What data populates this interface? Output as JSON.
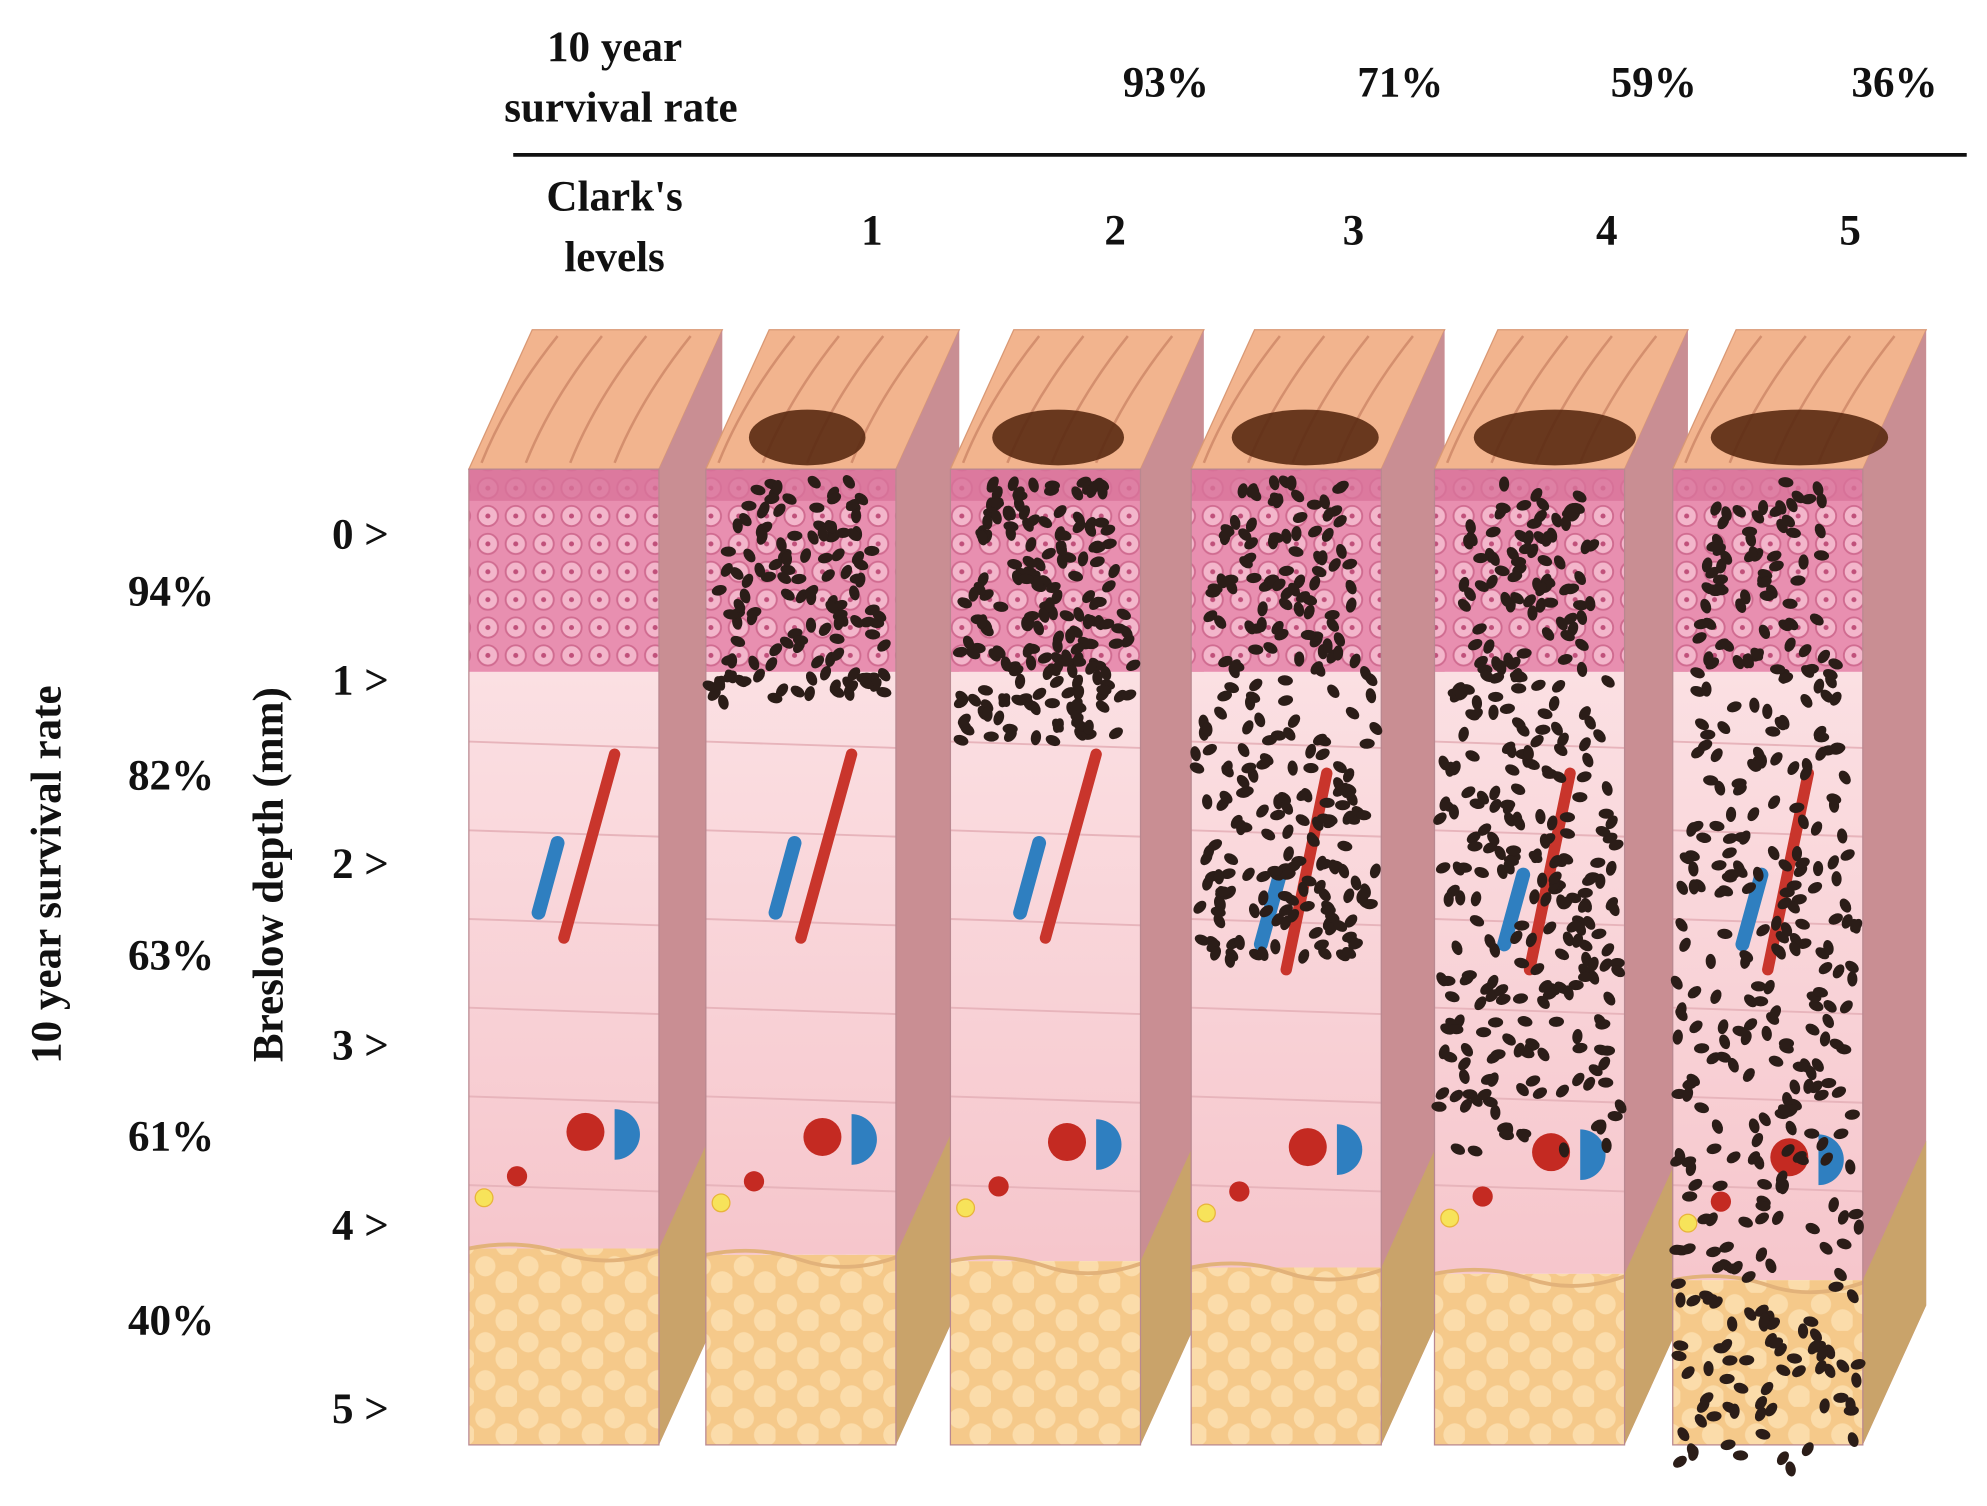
{
  "top_survival": {
    "label_lines": [
      "10 year",
      "survival rate"
    ],
    "rates": [
      "93%",
      "71%",
      "59%",
      "36%"
    ]
  },
  "clark": {
    "label_lines": [
      "Clark's",
      "levels"
    ],
    "levels": [
      "1",
      "2",
      "3",
      "4",
      "5"
    ]
  },
  "left_axis_title": "10 year  survival rate",
  "depth_axis_title": "Breslow depth (mm)",
  "depth_marks": [
    "0 >",
    "1 >",
    "2 >",
    "3 >",
    "4 >",
    "5 >"
  ],
  "left_rates": [
    "94%",
    "82%",
    "63%",
    "61%",
    "40%"
  ]
}
